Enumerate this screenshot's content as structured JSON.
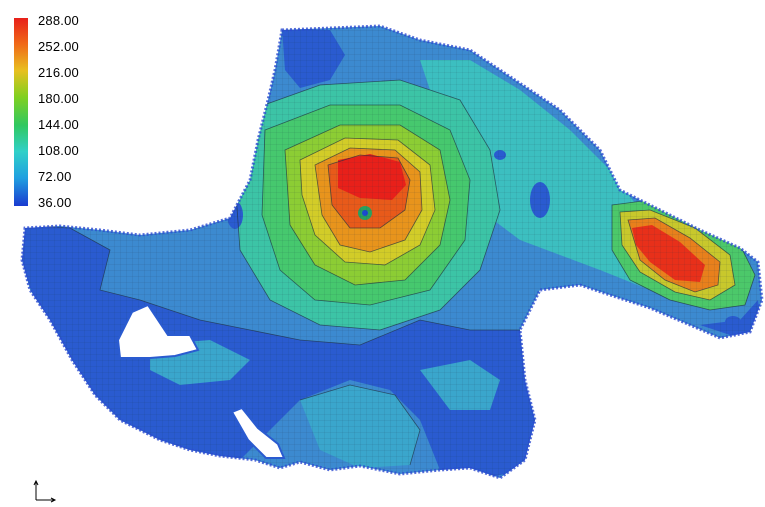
{
  "legend": {
    "labels": [
      "288.00",
      "252.00",
      "216.00",
      "180.00",
      "144.00",
      "108.00",
      "72.00",
      "36.00"
    ],
    "colors": [
      "#e8201a",
      "#f08418",
      "#d8d41c",
      "#58d020",
      "#30c860",
      "#30d0c0",
      "#20a8e0",
      "#1a44d0"
    ],
    "values": [
      288,
      252,
      216,
      180,
      144,
      108,
      72,
      36
    ]
  },
  "colors": {
    "lowest": "#2a5fcf",
    "low": "#3b82cf",
    "mid_low": "#3cb0cf",
    "mid": "#3bc4b0",
    "green": "#4cc850",
    "yellow": "#c8d028",
    "orange": "#e87a1c",
    "red": "#e8201a",
    "background": "#ffffff"
  }
}
